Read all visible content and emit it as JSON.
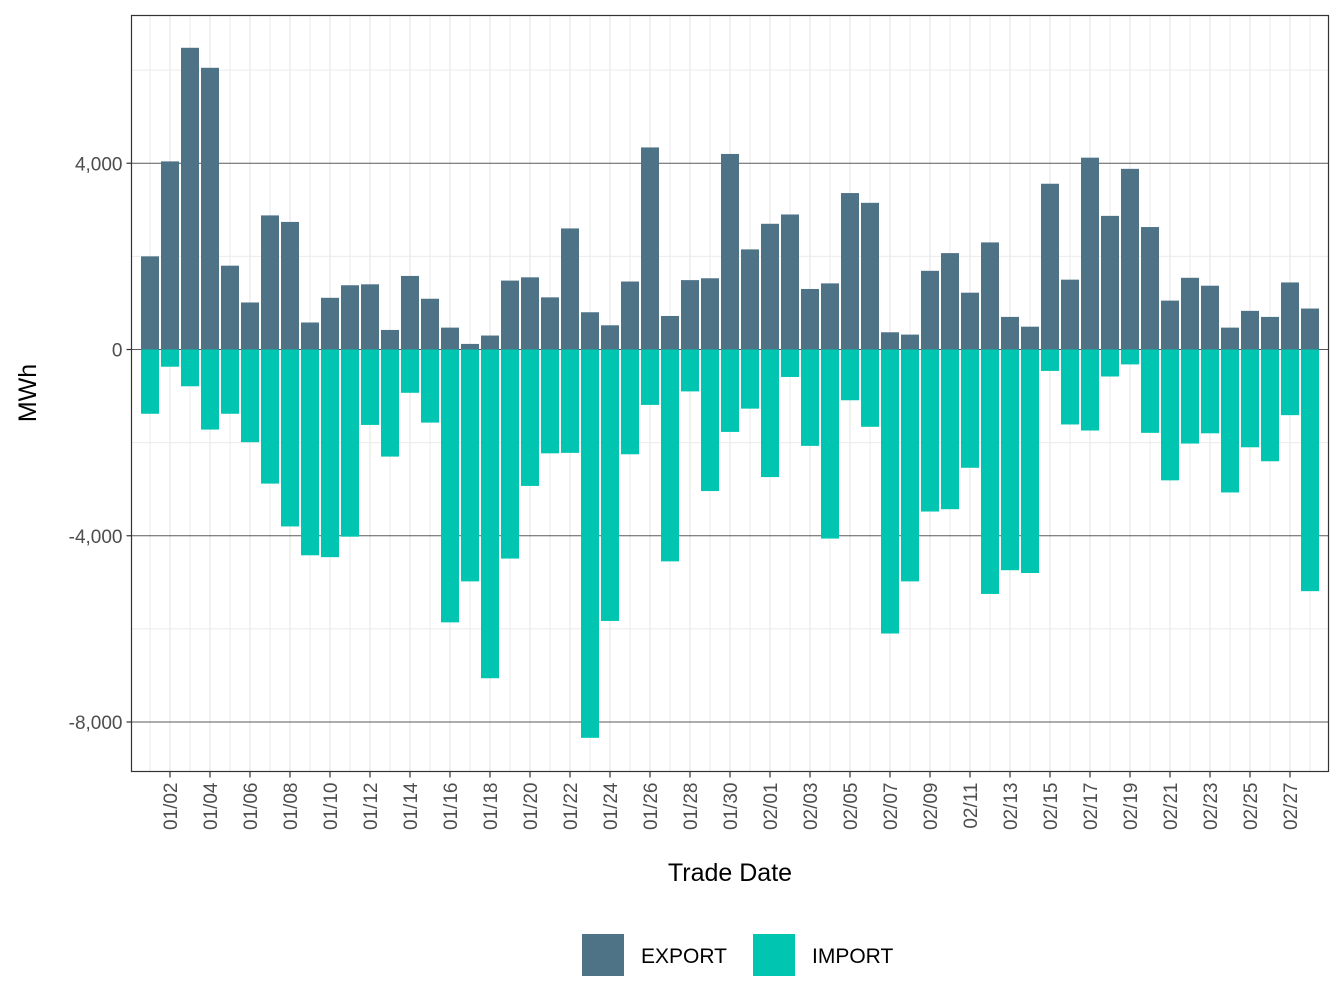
{
  "chart_data": {
    "type": "bar",
    "title": "",
    "xlabel": "Trade Date",
    "ylabel": "MWh",
    "ylim": [
      -8900,
      7300
    ],
    "yticks": [
      -8000,
      -4000,
      0,
      4000
    ],
    "ytick_labels": [
      "-8,000",
      "-4,000",
      "0",
      "4,000"
    ],
    "grid": true,
    "legend_position": "bottom",
    "categories": [
      "01/01",
      "01/02",
      "01/03",
      "01/04",
      "01/05",
      "01/06",
      "01/07",
      "01/08",
      "01/09",
      "01/10",
      "01/11",
      "01/12",
      "01/13",
      "01/14",
      "01/15",
      "01/16",
      "01/17",
      "01/18",
      "01/19",
      "01/20",
      "01/21",
      "01/22",
      "01/23",
      "01/24",
      "01/25",
      "01/26",
      "01/27",
      "01/28",
      "01/29",
      "01/30",
      "01/31",
      "02/01",
      "02/02",
      "02/03",
      "02/04",
      "02/05",
      "02/06",
      "02/07",
      "02/08",
      "02/09",
      "02/10",
      "02/11",
      "02/12",
      "02/13",
      "02/14",
      "02/15",
      "02/16",
      "02/17",
      "02/18",
      "02/19",
      "02/20",
      "02/21",
      "02/22",
      "02/23",
      "02/24",
      "02/25",
      "02/26",
      "02/27",
      "02/28"
    ],
    "xtick_labels": [
      "01/02",
      "01/04",
      "01/06",
      "01/08",
      "01/10",
      "01/12",
      "01/14",
      "01/16",
      "01/18",
      "01/20",
      "01/22",
      "01/24",
      "01/26",
      "01/28",
      "01/30",
      "02/01",
      "02/03",
      "02/05",
      "02/07",
      "02/09",
      "02/11",
      "02/13",
      "02/15",
      "02/17",
      "02/19",
      "02/21",
      "02/23",
      "02/25",
      "02/27"
    ],
    "series": [
      {
        "name": "EXPORT",
        "color": "#4e7387",
        "values": [
          2000,
          4040,
          6480,
          6050,
          1800,
          1010,
          2880,
          2740,
          580,
          1110,
          1380,
          1400,
          420,
          1580,
          1090,
          470,
          120,
          300,
          1480,
          1550,
          1120,
          2600,
          800,
          520,
          1460,
          4340,
          720,
          1490,
          1530,
          4200,
          2150,
          2700,
          2900,
          1300,
          1420,
          3360,
          3150,
          370,
          320,
          1690,
          2070,
          1220,
          2300,
          700,
          490,
          3560,
          1500,
          4120,
          2870,
          3880,
          2630,
          1050,
          1540,
          1370,
          470,
          830,
          700,
          1440,
          880
        ]
      },
      {
        "name": "IMPORT",
        "color": "#00c6b1",
        "values": [
          -1380,
          -370,
          -790,
          -1720,
          -1380,
          -1990,
          -2880,
          -3800,
          -4420,
          -4460,
          -4020,
          -1620,
          -2300,
          -930,
          -1570,
          -5860,
          -4980,
          -7060,
          -4490,
          -2930,
          -2230,
          -2220,
          -8340,
          -5830,
          -2250,
          -1190,
          -4550,
          -900,
          -3040,
          -1770,
          -1270,
          -2740,
          -590,
          -2070,
          -4060,
          -1090,
          -1660,
          -6100,
          -4980,
          -3480,
          -3430,
          -2540,
          -5250,
          -4740,
          -4800,
          -460,
          -1610,
          -1740,
          -580,
          -320,
          -1790,
          -2810,
          -2020,
          -1800,
          -3070,
          -2100,
          -2400,
          -1410,
          -5190
        ]
      }
    ]
  }
}
